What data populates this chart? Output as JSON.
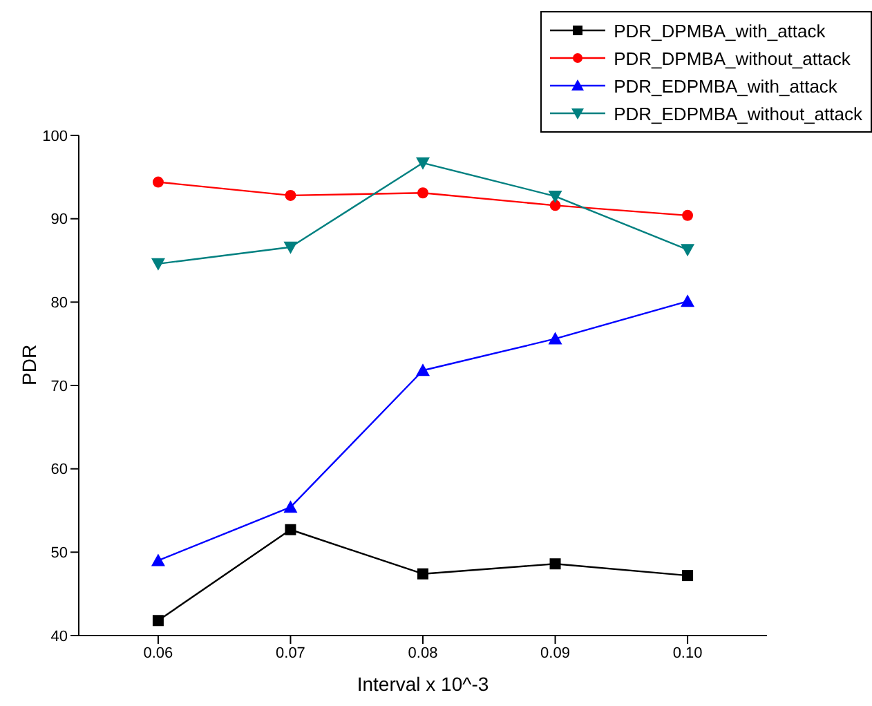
{
  "chart_data": {
    "type": "line",
    "xlabel": "Interval x 10^-3",
    "ylabel": "PDR",
    "x": [
      0.06,
      0.07,
      0.08,
      0.09,
      0.1
    ],
    "xlim": [
      0.054,
      0.106
    ],
    "xticks": [
      {
        "value": 0.06,
        "label": "0.06"
      },
      {
        "value": 0.07,
        "label": "0.07"
      },
      {
        "value": 0.08,
        "label": "0.08"
      },
      {
        "value": 0.09,
        "label": "0.09"
      },
      {
        "value": 0.1,
        "label": "0.10"
      }
    ],
    "ylim": [
      40,
      100
    ],
    "yticks": [
      40,
      50,
      60,
      70,
      80,
      90,
      100
    ],
    "grid": false,
    "legend": "top right",
    "line_style": "solid",
    "series": [
      {
        "name": "PDR_DPMBA_with_attack",
        "color": "#000000",
        "marker": "square",
        "values": [
          41.8,
          52.7,
          47.4,
          48.6,
          47.2
        ]
      },
      {
        "name": "PDR_DPMBA_without_attack",
        "color": "#ff0000",
        "marker": "circle",
        "values": [
          94.4,
          92.8,
          93.1,
          91.6,
          90.4
        ]
      },
      {
        "name": "PDR_EDPMBA_with_attack",
        "color": "#0000ff",
        "marker": "triangle",
        "values": [
          49.0,
          55.4,
          71.8,
          75.6,
          80.1
        ]
      },
      {
        "name": "PDR_EDPMBA_without_attack",
        "color": "#008080",
        "marker": "triangle-down",
        "values": [
          84.6,
          86.6,
          96.7,
          92.7,
          86.3
        ]
      }
    ]
  }
}
